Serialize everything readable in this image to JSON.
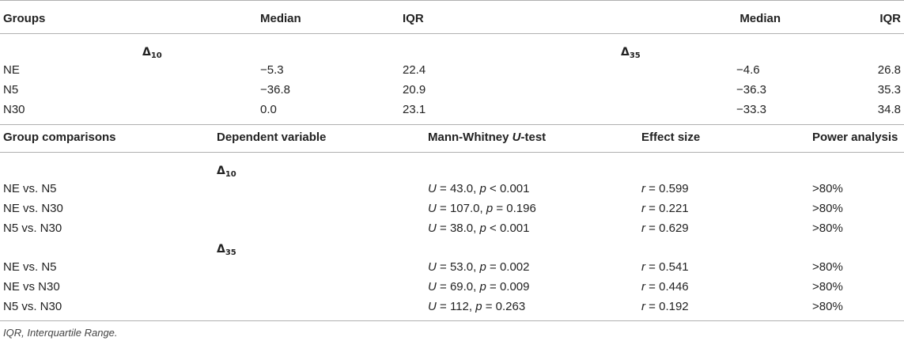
{
  "table1": {
    "headers": {
      "groups": "Groups",
      "median": "Median",
      "iqr": "IQR"
    },
    "delta_symbol": "Δ",
    "section_left": "10",
    "section_right": "35",
    "rows": [
      {
        "group": "NE",
        "median10": "−5.3",
        "iqr10": "22.4",
        "median35": "−4.6",
        "iqr35": "26.8"
      },
      {
        "group": "N5",
        "median10": "−36.8",
        "iqr10": "20.9",
        "median35": "−36.3",
        "iqr35": "35.3"
      },
      {
        "group": "N30",
        "median10": "0.0",
        "iqr10": "23.1",
        "median35": "−33.3",
        "iqr35": "34.8"
      }
    ]
  },
  "table2": {
    "headers": {
      "comparisons": "Group comparisons",
      "dependent": "Dependent variable",
      "mw_prefix": "Mann-Whitney ",
      "mw_u": "U",
      "mw_suffix": "-test",
      "effect": "Effect size",
      "power": "Power analysis"
    },
    "sections": [
      {
        "label": "10",
        "rows": [
          {
            "comparison": "NE vs. N5",
            "u": "43.0",
            "prel": "<",
            "p": "0.001",
            "r": "0.599",
            "power": ">80%"
          },
          {
            "comparison": "NE vs. N30",
            "u": "107.0",
            "prel": "=",
            "p": "0.196",
            "r": "0.221",
            "power": ">80%"
          },
          {
            "comparison": "N5 vs. N30",
            "u": "38.0",
            "prel": "<",
            "p": "0.001",
            "r": "0.629",
            "power": ">80%"
          }
        ]
      },
      {
        "label": "35",
        "rows": [
          {
            "comparison": "NE vs. N5",
            "u": "53.0",
            "prel": "=",
            "p": "0.002",
            "r": "0.541",
            "power": ">80%"
          },
          {
            "comparison": "NE vs N30",
            "u": "69.0",
            "prel": "=",
            "p": "0.009",
            "r": "0.446",
            "power": ">80%"
          },
          {
            "comparison": "N5 vs. N30",
            "u": "112",
            "prel": "=",
            "p": "0.263",
            "r": "0.192",
            "power": ">80%"
          }
        ]
      }
    ]
  },
  "footnote": "IQR, Interquartile Range."
}
